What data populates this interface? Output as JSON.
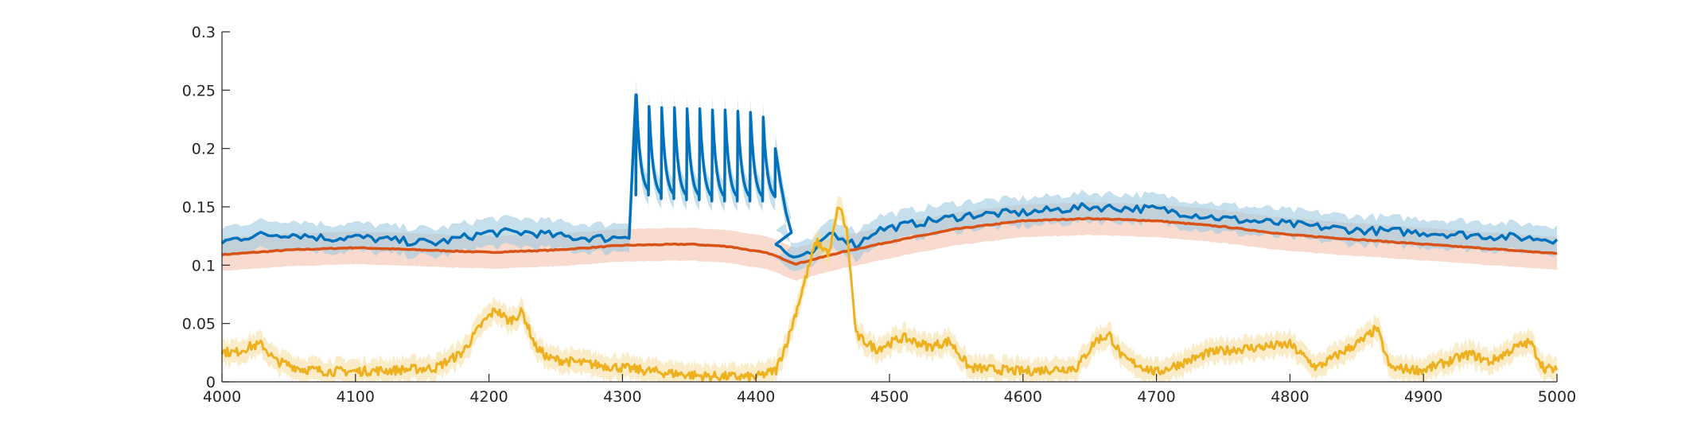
{
  "chart_data": {
    "type": "line",
    "title": "",
    "xlabel": "",
    "ylabel": "",
    "xlim": [
      4000,
      5000
    ],
    "ylim": [
      0,
      0.3
    ],
    "grid": false,
    "legend": "none",
    "x_ticks": [
      "4000",
      "4100",
      "4200",
      "4300",
      "4400",
      "4500",
      "4600",
      "4700",
      "4800",
      "4900",
      "5000"
    ],
    "y_ticks": [
      "0",
      "0.05",
      "0.1",
      "0.15",
      "0.2",
      "0.25",
      "0.3"
    ],
    "series": [
      {
        "color": "#0072bd",
        "band_color": "#9ecae1",
        "x": [
          4000,
          4020,
          4050,
          4080,
          4100,
          4130,
          4160,
          4200,
          4230,
          4260,
          4290,
          4305,
          4310
        ],
        "values": [
          0.12,
          0.125,
          0.127,
          0.123,
          0.124,
          0.121,
          0.119,
          0.128,
          0.128,
          0.124,
          0.123,
          0.126,
          0.246
        ],
        "band_halfwidth": 0.012,
        "pulses": {
          "start": 4310,
          "period": 9.5,
          "count": 11,
          "peaks": [
            0.246,
            0.236,
            0.235,
            0.235,
            0.234,
            0.234,
            0.233,
            0.233,
            0.232,
            0.231,
            0.227
          ],
          "troughs": [
            0.16,
            0.157,
            0.157,
            0.156,
            0.156,
            0.155,
            0.155,
            0.155,
            0.155,
            0.155,
            0.155
          ]
        },
        "tail_x": [
          4415,
          4425,
          4435,
          4445,
          4455,
          4465,
          4475,
          4490,
          4520,
          4560,
          4600,
          4650,
          4700,
          4750,
          4800,
          4850,
          4900,
          4950,
          5000
        ],
        "tail_values": [
          0.118,
          0.108,
          0.106,
          0.112,
          0.128,
          0.124,
          0.117,
          0.13,
          0.136,
          0.143,
          0.145,
          0.15,
          0.148,
          0.14,
          0.135,
          0.13,
          0.128,
          0.125,
          0.122
        ]
      },
      {
        "color": "#d95319",
        "band_color": "#f3c2ad",
        "x": [
          4000,
          4050,
          4100,
          4150,
          4200,
          4250,
          4300,
          4350,
          4380,
          4410,
          4430,
          4460,
          4500,
          4550,
          4600,
          4650,
          4700,
          4750,
          4800,
          4850,
          4900,
          4950,
          5000
        ],
        "values": [
          0.109,
          0.113,
          0.115,
          0.113,
          0.111,
          0.113,
          0.117,
          0.118,
          0.116,
          0.11,
          0.101,
          0.11,
          0.12,
          0.131,
          0.138,
          0.14,
          0.138,
          0.133,
          0.126,
          0.122,
          0.118,
          0.114,
          0.11
        ],
        "band_halfwidth": 0.014
      },
      {
        "color": "#edb120",
        "band_color": "#f6dd9a",
        "x": [
          4000,
          4010,
          4020,
          4030,
          4040,
          4060,
          4080,
          4100,
          4130,
          4160,
          4180,
          4195,
          4205,
          4215,
          4225,
          4235,
          4245,
          4270,
          4300,
          4330,
          4360,
          4400,
          4415,
          4425,
          4435,
          4445,
          4455,
          4462,
          4468,
          4475,
          4490,
          4510,
          4530,
          4545,
          4560,
          4600,
          4640,
          4655,
          4665,
          4675,
          4700,
          4740,
          4760,
          4780,
          4800,
          4820,
          4840,
          4855,
          4865,
          4875,
          4900,
          4920,
          4935,
          4950,
          4970,
          4980,
          4990,
          5000
        ],
        "values": [
          0.026,
          0.025,
          0.03,
          0.032,
          0.018,
          0.011,
          0.009,
          0.009,
          0.01,
          0.012,
          0.025,
          0.05,
          0.062,
          0.052,
          0.06,
          0.03,
          0.02,
          0.016,
          0.012,
          0.008,
          0.005,
          0.004,
          0.01,
          0.04,
          0.08,
          0.12,
          0.11,
          0.152,
          0.13,
          0.04,
          0.028,
          0.038,
          0.03,
          0.035,
          0.012,
          0.009,
          0.012,
          0.036,
          0.04,
          0.02,
          0.008,
          0.025,
          0.028,
          0.03,
          0.032,
          0.012,
          0.026,
          0.036,
          0.046,
          0.012,
          0.01,
          0.018,
          0.024,
          0.017,
          0.03,
          0.034,
          0.012,
          0.01
        ],
        "band_halfwidth": 0.01
      }
    ]
  }
}
